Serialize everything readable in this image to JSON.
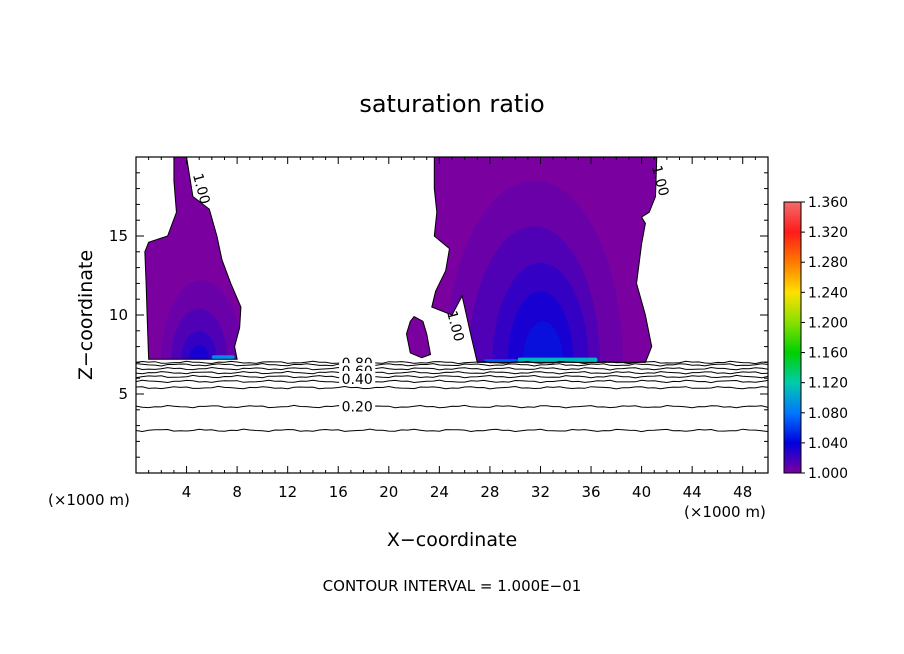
{
  "chart_data": {
    "type": "contour",
    "title": "saturation ratio",
    "xlabel": "X−coordinate",
    "ylabel": "Z−coordinate",
    "x_unit_left": "(×1000 m)",
    "x_unit_right": "(×1000 m)",
    "footer": "CONTOUR INTERVAL = 1.000E−01",
    "xlim": [
      0,
      50
    ],
    "ylim": [
      0,
      20
    ],
    "x_ticks": [
      4,
      8,
      12,
      16,
      20,
      24,
      28,
      32,
      36,
      40,
      44,
      48
    ],
    "y_ticks": [
      5,
      10,
      15
    ],
    "colorbar": {
      "min": 1.0,
      "max": 1.36,
      "ticks": [
        "1.360",
        "1.320",
        "1.280",
        "1.240",
        "1.200",
        "1.160",
        "1.120",
        "1.080",
        "1.040",
        "1.000"
      ],
      "tick_values": [
        1.36,
        1.32,
        1.28,
        1.24,
        1.2,
        1.16,
        1.12,
        1.08,
        1.04,
        1.0
      ],
      "colors": [
        "#f56b6b",
        "#ff1a1a",
        "#ff7a00",
        "#ffe000",
        "#88e000",
        "#00d000",
        "#00ccaa",
        "#0077ff",
        "#0000dd",
        "#7a00a0"
      ]
    },
    "contour_labels": [
      {
        "text": "0.80",
        "x": 17.5,
        "z": 6.95
      },
      {
        "text": "0.60",
        "x": 17.5,
        "z": 6.45
      },
      {
        "text": "0.40",
        "x": 17.5,
        "z": 5.95
      },
      {
        "text": "0.20",
        "x": 17.5,
        "z": 4.2
      },
      {
        "text": "1.00",
        "x": 5.2,
        "z": 18.0
      },
      {
        "text": "1.00",
        "x": 25.3,
        "z": 9.3
      },
      {
        "text": "1.00",
        "x": 41.5,
        "z": 18.5
      }
    ],
    "contour_lines": [
      {
        "level": 0.9,
        "z": 7.0
      },
      {
        "level": 0.8,
        "z": 6.85
      },
      {
        "level": 0.7,
        "z": 6.6
      },
      {
        "level": 0.6,
        "z": 6.35
      },
      {
        "level": 0.5,
        "z": 6.1
      },
      {
        "level": 0.4,
        "z": 5.8
      },
      {
        "level": 0.3,
        "z": 5.4
      },
      {
        "level": 0.2,
        "z": 4.2
      },
      {
        "level": 0.1,
        "z": 2.7
      }
    ],
    "regions": [
      {
        "name": "left",
        "level": 1.0,
        "polygon": [
          [
            3.0,
            20
          ],
          [
            4.0,
            20
          ],
          [
            4.5,
            17.5
          ],
          [
            5.8,
            16.7
          ],
          [
            6.4,
            15.0
          ],
          [
            6.8,
            13.5
          ],
          [
            7.5,
            12.0
          ],
          [
            8.3,
            10.5
          ],
          [
            8.2,
            9.2
          ],
          [
            7.8,
            8.0
          ],
          [
            8.0,
            7.2
          ],
          [
            1.0,
            7.2
          ],
          [
            0.9,
            9.5
          ],
          [
            0.8,
            12.0
          ],
          [
            0.7,
            14.0
          ],
          [
            1.0,
            14.6
          ],
          [
            2.5,
            15.0
          ],
          [
            3.2,
            16.5
          ],
          [
            3.0,
            18.5
          ]
        ]
      },
      {
        "name": "small",
        "level": 1.0,
        "polygon": [
          [
            22.0,
            9.9
          ],
          [
            22.7,
            9.6
          ],
          [
            23.0,
            8.8
          ],
          [
            23.3,
            7.5
          ],
          [
            22.6,
            7.3
          ],
          [
            21.7,
            7.6
          ],
          [
            21.4,
            8.8
          ],
          [
            21.7,
            9.6
          ]
        ]
      },
      {
        "name": "right",
        "level": 1.0,
        "polygon": [
          [
            23.6,
            20
          ],
          [
            41.2,
            20
          ],
          [
            41.1,
            17.5
          ],
          [
            40.6,
            16.5
          ],
          [
            40.0,
            16.2
          ],
          [
            40.3,
            15.8
          ],
          [
            40.0,
            14.5
          ],
          [
            39.6,
            12.0
          ],
          [
            40.3,
            10.0
          ],
          [
            40.8,
            8.0
          ],
          [
            40.3,
            7.0
          ],
          [
            27.0,
            7.0
          ],
          [
            26.5,
            8.7
          ],
          [
            26.0,
            10.5
          ],
          [
            25.8,
            11.2
          ],
          [
            25.0,
            10.0
          ],
          [
            23.4,
            10.5
          ],
          [
            23.7,
            11.5
          ],
          [
            24.5,
            12.8
          ],
          [
            24.8,
            14.2
          ],
          [
            23.6,
            15.0
          ],
          [
            23.8,
            16.5
          ],
          [
            23.6,
            18.0
          ]
        ]
      }
    ],
    "shading": [
      {
        "cx": 5.2,
        "cz": 7.2,
        "rx": 3.2,
        "rz": 5.0,
        "value": 1.01
      },
      {
        "cx": 5.0,
        "cz": 7.2,
        "rx": 2.2,
        "rz": 3.2,
        "value": 1.02
      },
      {
        "cx": 5.0,
        "cz": 7.2,
        "rx": 1.4,
        "rz": 1.8,
        "value": 1.03
      },
      {
        "cx": 5.0,
        "cz": 7.2,
        "rx": 0.8,
        "rz": 0.9,
        "value": 1.04
      },
      {
        "cx": 31.5,
        "cz": 7.0,
        "rx": 7.0,
        "rz": 11.5,
        "value": 1.01
      },
      {
        "cx": 31.5,
        "cz": 7.0,
        "rx": 5.2,
        "rz": 8.6,
        "value": 1.02
      },
      {
        "cx": 32.0,
        "cz": 7.0,
        "rx": 3.8,
        "rz": 6.3,
        "value": 1.03
      },
      {
        "cx": 32.0,
        "cz": 7.0,
        "rx": 2.6,
        "rz": 4.5,
        "value": 1.04
      },
      {
        "cx": 32.2,
        "cz": 7.0,
        "rx": 1.6,
        "rz": 2.6,
        "value": 1.05
      }
    ],
    "high_bands": [
      {
        "x0": 6.0,
        "x1": 7.8,
        "z0": 7.2,
        "z1": 7.45,
        "value": 1.09
      },
      {
        "x0": 30.2,
        "x1": 36.5,
        "z0": 7.0,
        "z1": 7.3,
        "value": 1.11
      },
      {
        "x0": 27.5,
        "x1": 30.2,
        "z0": 7.0,
        "z1": 7.2,
        "value": 1.07
      }
    ]
  }
}
